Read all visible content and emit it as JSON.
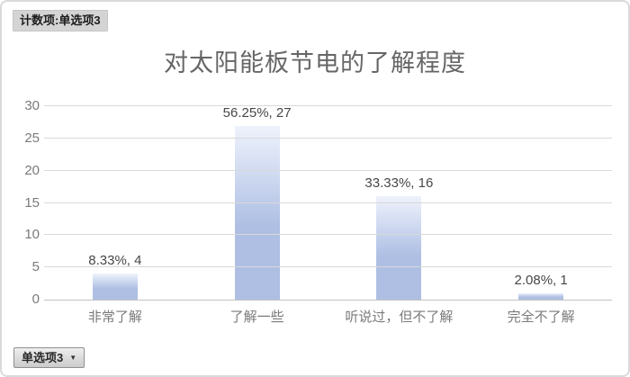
{
  "pivot": {
    "value_field_button": "计数项:单选项3",
    "axis_field_button": "单选项3",
    "dropdown_glyph": "▼"
  },
  "chart_data": {
    "type": "bar",
    "title": "对太阳能板节电的了解程度",
    "categories": [
      "非常了解",
      "了解一些",
      "听说过，但不了解",
      "完全不了解"
    ],
    "values": [
      4,
      27,
      16,
      1
    ],
    "data_labels": [
      "8.33%, 4",
      "56.25%, 27",
      "33.33%, 16",
      "2.08%, 1"
    ],
    "ylim": [
      0,
      30
    ],
    "yticks": [
      0,
      5,
      10,
      15,
      20,
      25,
      30
    ],
    "grid": true,
    "legend": "none",
    "xlabel": "",
    "ylabel": ""
  },
  "colors": {
    "frame_border": "#dadada",
    "button_bg": "#d4d4d4",
    "button_text": "#1c1c1c",
    "title_text": "#666666",
    "axis_text": "#7a7a7a",
    "data_label_text": "#474747",
    "gridline": "#d9d9d9",
    "axis_line": "#c2c2c2",
    "bar_top": "#eef2fb",
    "bar_bottom": "#aebfe3"
  }
}
